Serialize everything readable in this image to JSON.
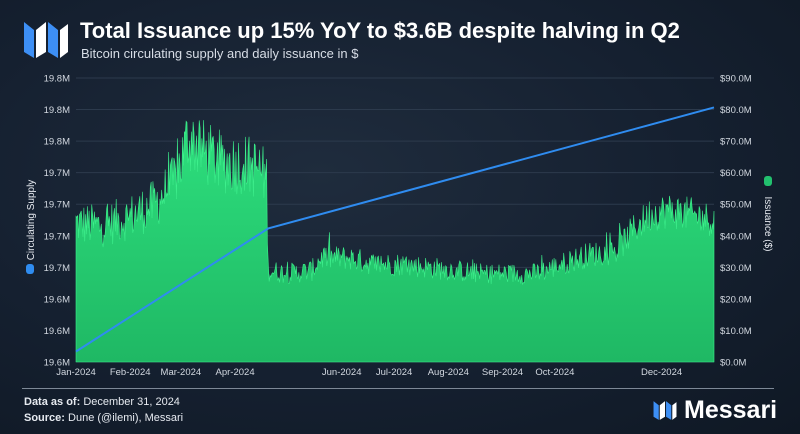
{
  "header": {
    "title": "Total Issuance up 15% YoY to $3.6B despite halving in Q2",
    "subtitle": "Bitcoin circulating supply and daily issuance in $"
  },
  "footer": {
    "data_as_of_label": "Data as of:",
    "data_as_of_value": "December 31, 2024",
    "source_label": "Source:",
    "source_value": "Dune (@ilemi), Messari",
    "brand": "Messari"
  },
  "colors": {
    "supply_line": "#2f8cf0",
    "issuance_area": "#22c06e",
    "issuance_area_light": "#2ee07e",
    "axis_text": "#d2d8e0",
    "grid": "#2c3a4c"
  },
  "chart_data": {
    "type": "area",
    "left_axis_label": "Circulating Supply",
    "right_axis_label": "Issuance ($)",
    "left_ticks": [
      "19.6M",
      "19.6M",
      "19.6M",
      "19.7M",
      "19.7M",
      "19.7M",
      "19.7M",
      "19.8M",
      "19.8M",
      "19.8M"
    ],
    "right_ticks": [
      "$0.0M",
      "$10.0M",
      "$20.0M",
      "$30.0M",
      "$40.0M",
      "$50.0M",
      "$60.0M",
      "$70.0M",
      "$80.0M",
      "$90.0M"
    ],
    "x_ticks": [
      "Jan-2024",
      "Feb-2024",
      "Mar-2024",
      "Apr-2024",
      "Jun-2024",
      "Jul-2024",
      "Aug-2024",
      "Sep-2024",
      "Oct-2024",
      "Dec-2024"
    ],
    "x_tick_dates": [
      "2024-01-01",
      "2024-02-01",
      "2024-03-01",
      "2024-04-01",
      "2024-06-01",
      "2024-07-01",
      "2024-08-01",
      "2024-09-01",
      "2024-10-01",
      "2024-12-01"
    ],
    "x_start": "2024-01-01",
    "x_end": "2024-12-31",
    "supply_ylim": [
      19.585,
      19.855
    ],
    "issuance_ylim": [
      0,
      90
    ],
    "series": [
      {
        "name": "Circulating Supply",
        "axis": "left",
        "x": [
          "2024-01-01",
          "2024-04-20",
          "2024-12-31"
        ],
        "values": [
          19.595,
          19.712,
          19.827
        ]
      },
      {
        "name": "Issuance ($)",
        "axis": "right",
        "x": [
          "2024-01-01",
          "2024-01-15",
          "2024-02-01",
          "2024-02-15",
          "2024-02-25",
          "2024-03-01",
          "2024-03-05",
          "2024-03-10",
          "2024-03-15",
          "2024-03-25",
          "2024-04-05",
          "2024-04-15",
          "2024-04-19",
          "2024-04-20",
          "2024-05-01",
          "2024-05-15",
          "2024-05-20",
          "2024-06-05",
          "2024-06-20",
          "2024-07-05",
          "2024-07-20",
          "2024-08-05",
          "2024-08-20",
          "2024-09-05",
          "2024-09-20",
          "2024-10-05",
          "2024-10-20",
          "2024-11-05",
          "2024-11-15",
          "2024-11-25",
          "2024-12-05",
          "2024-12-15",
          "2024-12-31"
        ],
        "values": [
          44,
          43,
          46,
          50,
          56,
          63,
          71,
          69,
          66,
          63,
          63,
          61,
          58,
          29,
          28,
          29,
          33,
          33,
          31,
          31,
          30,
          29,
          28,
          28,
          28,
          31,
          34,
          35,
          42,
          47,
          48,
          47,
          45
        ]
      }
    ]
  }
}
